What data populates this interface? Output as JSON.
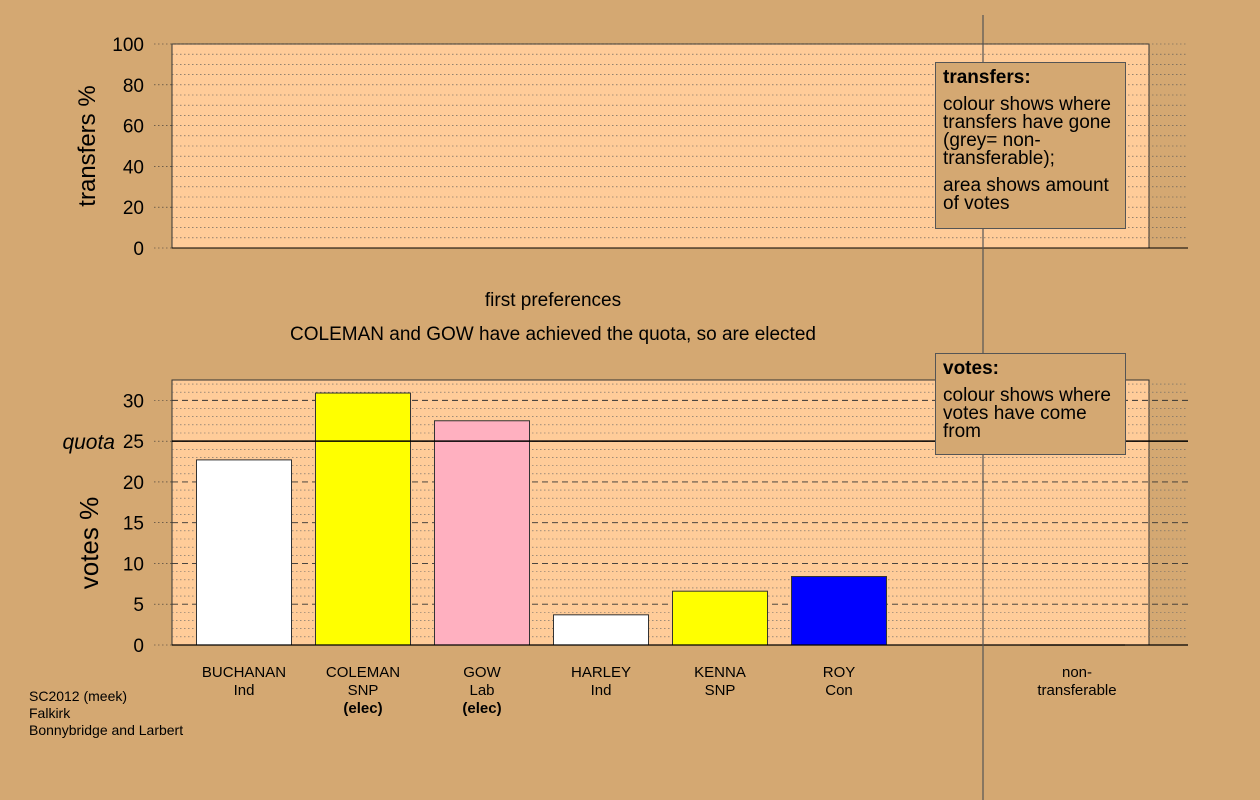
{
  "chart_data": [
    {
      "type": "area",
      "ylabel": "transfers %",
      "ylim": [
        0,
        100
      ],
      "yticks": [
        0,
        20,
        40,
        60,
        80,
        100
      ],
      "series": []
    },
    {
      "type": "bar",
      "stage_label": "first preferences",
      "message": "COLEMAN and GOW have achieved the quota, so are elected",
      "ylabel": "votes %",
      "ylim": [
        0,
        32.5
      ],
      "yticks": [
        0,
        5,
        10,
        15,
        20,
        25,
        30
      ],
      "quota": {
        "label": "quota",
        "value": 25
      },
      "candidates": [
        {
          "name": "BUCHANAN",
          "party": "Ind",
          "status": "",
          "value": 22.7,
          "color": "#FFFFFF"
        },
        {
          "name": "COLEMAN",
          "party": "SNP",
          "status": "(elec)",
          "value": 30.9,
          "color": "#FFFF00"
        },
        {
          "name": "GOW",
          "party": "Lab",
          "status": "(elec)",
          "value": 27.5,
          "color": "#FFB0C0"
        },
        {
          "name": "HARLEY",
          "party": "Ind",
          "status": "",
          "value": 3.7,
          "color": "#FFFFFF"
        },
        {
          "name": "KENNA",
          "party": "SNP",
          "status": "",
          "value": 6.6,
          "color": "#FFFF00"
        },
        {
          "name": "ROY",
          "party": "Con",
          "status": "",
          "value": 8.4,
          "color": "#0000FF"
        }
      ],
      "nontransferable": {
        "line1": "non-",
        "line2": "transferable",
        "value": 0
      }
    }
  ],
  "legend_transfers": {
    "title": "transfers:",
    "desc1": "colour shows where transfers have gone (grey= non-transferable);",
    "desc2": "area shows amount of votes"
  },
  "legend_votes": {
    "title": "votes:",
    "desc1": "colour shows where votes have come from"
  },
  "source": {
    "line1": "SC2012 (meek)",
    "line2": "Falkirk",
    "line3": "Bonnybridge and Larbert"
  },
  "colors": {
    "background": "#D4A872",
    "plot_fill": "#FFCC99"
  }
}
